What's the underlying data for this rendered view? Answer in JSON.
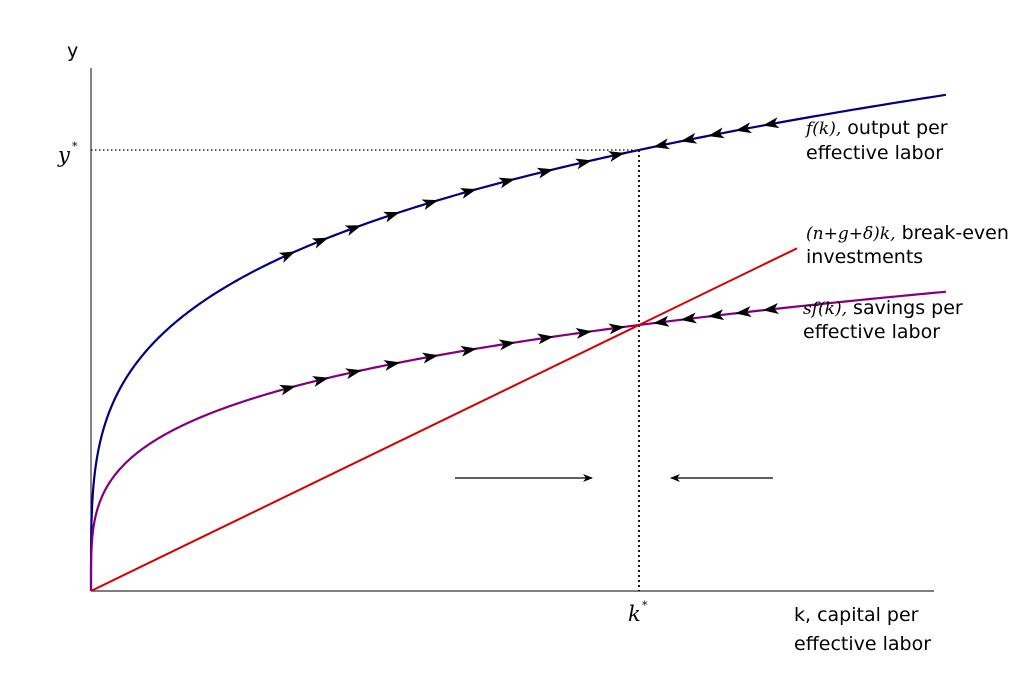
{
  "chart_data": {
    "type": "line",
    "title": "",
    "ylabel": "y",
    "xlabel_line1": "k, capital per",
    "xlabel_line2": "effective labor",
    "y_star_label": "y",
    "k_star_label": "k",
    "star": "*",
    "series": [
      {
        "key": "f",
        "math": "f(k),",
        "label_line1": " output per",
        "label_line2": "effective labor",
        "color": "#000080",
        "shape": "sqrt",
        "arrows_right": [
          0.36,
          0.42,
          0.48,
          0.55,
          0.62,
          0.69,
          0.76,
          0.83,
          0.9,
          0.96
        ],
        "arrows_left": [
          1.04,
          1.09,
          1.14,
          1.19,
          1.24
        ]
      },
      {
        "key": "break_even",
        "math": "(n+g+δ)k,",
        "label_line1": " break-even",
        "label_line2": "investments",
        "color": "#d40000",
        "shape": "linear"
      },
      {
        "key": "sf",
        "math": "sf(k),",
        "label_line1": " savings per",
        "label_line2": "effective labor",
        "color": "#800080",
        "shape": "sqrt",
        "arrows_right": [
          0.36,
          0.42,
          0.48,
          0.55,
          0.62,
          0.69,
          0.76,
          0.83,
          0.9,
          0.96
        ],
        "arrows_left": [
          1.04,
          1.09,
          1.14,
          1.19,
          1.24
        ]
      }
    ],
    "k_star": 1.0,
    "x_range": [
      0,
      1.56
    ],
    "direction_arrows": [
      "right",
      "left"
    ],
    "grid": false,
    "legend": "none"
  }
}
